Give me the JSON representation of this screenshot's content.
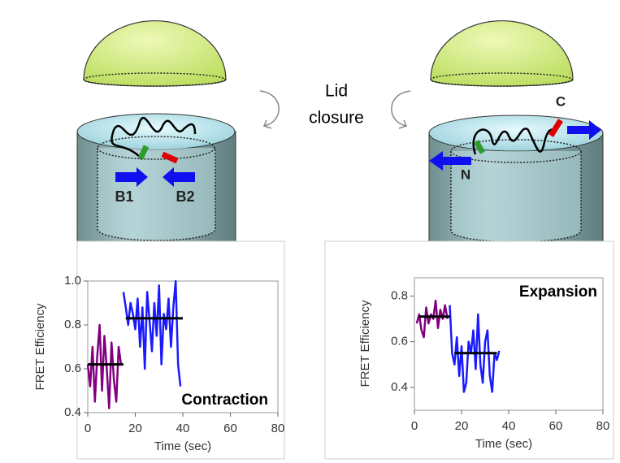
{
  "diagram": {
    "caption_lines": [
      "Lid",
      "closure"
    ],
    "left_labels": [
      "B1",
      "B2"
    ],
    "right_labels": [
      "N",
      "C"
    ]
  },
  "chart_data": [
    {
      "type": "line",
      "y_label": "FRET Efficiency",
      "x_label": "Time (sec)",
      "annotation": "Contraction",
      "xlim": [
        0,
        80
      ],
      "xticks": [
        0,
        20,
        40,
        60,
        80
      ],
      "ylim": [
        0.4,
        1.0
      ],
      "yticks": [
        0.4,
        0.6,
        0.8,
        {
          "value": 1.0,
          "label": "1.0"
        }
      ],
      "series": [
        {
          "color": "#800080",
          "x": [
            0,
            1,
            2,
            3,
            4,
            5,
            6,
            7,
            8,
            9,
            10,
            11,
            12,
            13,
            14
          ],
          "values": [
            0.62,
            0.52,
            0.7,
            0.45,
            0.66,
            0.8,
            0.5,
            0.75,
            0.6,
            0.42,
            0.72,
            0.55,
            0.45,
            0.7,
            0.62
          ]
        },
        {
          "color": "#1a1aff",
          "x": [
            15,
            16,
            17,
            18,
            19,
            20,
            21,
            22,
            23,
            24,
            25,
            26,
            27,
            28,
            29,
            30,
            31,
            32,
            33,
            34,
            35,
            36,
            37,
            38,
            39
          ],
          "values": [
            0.95,
            0.88,
            0.8,
            0.9,
            0.85,
            0.78,
            0.92,
            0.7,
            0.88,
            0.6,
            0.95,
            0.82,
            0.68,
            0.9,
            0.75,
            0.98,
            0.62,
            0.85,
            0.78,
            0.92,
            0.7,
            0.88,
            1.0,
            0.62,
            0.52
          ]
        },
        {
          "color": "#000000",
          "x": [
            0,
            15
          ],
          "values": [
            0.62,
            0.62
          ]
        },
        {
          "color": "#000000",
          "x": [
            16,
            40
          ],
          "values": [
            0.83,
            0.83
          ]
        }
      ]
    },
    {
      "type": "line",
      "y_label": "FRET Efficiency",
      "x_label": "Time (sec)",
      "annotation": "Expansion",
      "xlim": [
        0,
        80
      ],
      "xticks": [
        0,
        20,
        40,
        60,
        80
      ],
      "ylim": [
        0.3,
        0.88
      ],
      "yticks": [
        0.4,
        0.6,
        0.8
      ],
      "series": [
        {
          "color": "#800080",
          "x": [
            1,
            2,
            3,
            4,
            5,
            6,
            7,
            8,
            9,
            10,
            11,
            12,
            13,
            14
          ],
          "values": [
            0.68,
            0.72,
            0.65,
            0.62,
            0.75,
            0.68,
            0.72,
            0.7,
            0.78,
            0.66,
            0.74,
            0.7,
            0.76,
            0.7
          ]
        },
        {
          "color": "#1a1aff",
          "x": [
            15,
            16,
            17,
            18,
            19,
            20,
            21,
            22,
            23,
            24,
            25,
            26,
            27,
            28,
            29,
            30,
            31,
            32,
            33,
            34,
            35,
            36
          ],
          "values": [
            0.76,
            0.55,
            0.5,
            0.62,
            0.45,
            0.58,
            0.38,
            0.42,
            0.6,
            0.55,
            0.65,
            0.48,
            0.72,
            0.5,
            0.42,
            0.6,
            0.65,
            0.45,
            0.38,
            0.55,
            0.52,
            0.56
          ]
        },
        {
          "color": "#000000",
          "x": [
            2,
            15
          ],
          "values": [
            0.71,
            0.71
          ]
        },
        {
          "color": "#000000",
          "x": [
            17,
            35
          ],
          "values": [
            0.55,
            0.55
          ]
        }
      ]
    }
  ]
}
